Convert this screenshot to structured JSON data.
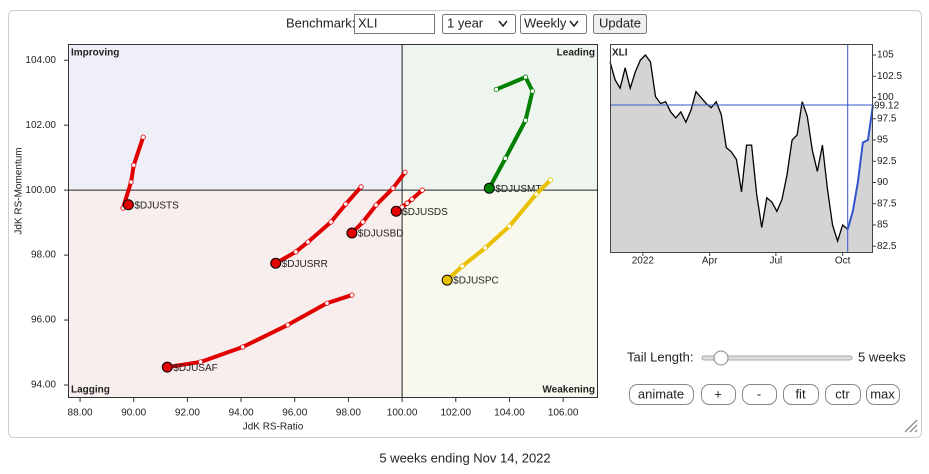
{
  "controls": {
    "benchmark_label": "Benchmark:",
    "benchmark": "XLI",
    "period": "1 year",
    "frequency": "Weekly",
    "update": "Update"
  },
  "chart_data": [
    {
      "type": "scatter",
      "x_label": "JdK RS-Ratio",
      "y_label": "JdK RS-Momentum",
      "xlim": [
        87.55,
        107.3
      ],
      "ylim": [
        93.6,
        104.5
      ],
      "center": [
        100,
        100
      ],
      "xticks": [
        {
          "value": 88,
          "label": "88.00"
        },
        {
          "value": 90,
          "label": "90.00"
        },
        {
          "value": 92,
          "label": "92.00"
        },
        {
          "value": 94,
          "label": "94.00"
        },
        {
          "value": 96,
          "label": "96.00"
        },
        {
          "value": 98,
          "label": "98.00"
        },
        {
          "value": 100,
          "label": "100.00"
        },
        {
          "value": 102,
          "label": "102.00"
        },
        {
          "value": 104,
          "label": "104.00"
        },
        {
          "value": 106,
          "label": "106.00"
        }
      ],
      "yticks": [
        {
          "value": 94,
          "label": "94.00"
        },
        {
          "value": 96,
          "label": "96.00"
        },
        {
          "value": 98,
          "label": "98.00"
        },
        {
          "value": 100,
          "label": "100.00"
        },
        {
          "value": 102,
          "label": "102.00"
        },
        {
          "value": 104,
          "label": "104.00"
        }
      ],
      "quadrants": [
        {
          "label": "Improving",
          "color": "#9a9ae0",
          "fill": "#efeff8"
        },
        {
          "label": "Leading",
          "color": "#6cbf6c",
          "fill": "#eef5ee"
        },
        {
          "label": "Lagging",
          "color": "#f0a0a0",
          "fill": "#f8eeee"
        },
        {
          "label": "Weakening",
          "color": "#e6c040",
          "fill": "#f8f8ee"
        }
      ],
      "series": [
        {
          "name": "$DJUSTS",
          "color": "#e00000",
          "x": [
            90.35,
            90.0,
            89.9,
            89.6,
            89.8
          ],
          "values": [
            101.63,
            100.77,
            100.25,
            99.45,
            99.55
          ]
        },
        {
          "name": "$DJUSRR",
          "color": "#e00000",
          "x": [
            98.47,
            97.9,
            97.35,
            96.49,
            96.04,
            95.29
          ],
          "values": [
            100.1,
            99.57,
            99.02,
            98.4,
            98.1,
            97.75
          ]
        },
        {
          "name": "$DJUSBD",
          "color": "#e00000",
          "x": [
            100.11,
            99.66,
            99.03,
            98.54,
            98.13
          ],
          "values": [
            100.55,
            100.06,
            99.54,
            99.02,
            98.68
          ]
        },
        {
          "name": "$DJUSDS",
          "color": "#e00000",
          "x": [
            100.75,
            100.37,
            100.19,
            100.0,
            99.78
          ],
          "values": [
            100.0,
            99.72,
            99.6,
            99.48,
            99.35
          ]
        },
        {
          "name": "$DJUSMT",
          "color": "#008000",
          "x": [
            103.51,
            104.6,
            104.86,
            104.6,
            103.85,
            103.25
          ],
          "values": [
            103.1,
            103.48,
            103.05,
            102.15,
            100.98,
            100.06
          ]
        },
        {
          "name": "$DJUSPC",
          "color": "#e8c000",
          "x": [
            105.53,
            105.0,
            104.0,
            103.1,
            102.24,
            101.68
          ],
          "values": [
            100.31,
            99.88,
            98.89,
            98.22,
            97.66,
            97.23
          ]
        },
        {
          "name": "$DJUSAF",
          "color": "#e00000",
          "x": [
            98.13,
            97.2,
            95.74,
            94.06,
            92.49,
            91.25
          ],
          "values": [
            96.77,
            96.52,
            95.85,
            95.17,
            94.71,
            94.55
          ]
        }
      ]
    },
    {
      "type": "line",
      "title": "XLI",
      "xlim": [
        0,
        52
      ],
      "ylim": [
        81.7,
        106.3
      ],
      "xticks": [
        {
          "value": 6.5,
          "label": "2022"
        },
        {
          "value": 19.7,
          "label": "Apr"
        },
        {
          "value": 32.8,
          "label": "Jul"
        },
        {
          "value": 46,
          "label": "Oct"
        }
      ],
      "yticks": [
        82.5,
        85,
        87.5,
        90,
        92.5,
        95,
        97.5,
        100,
        102.5,
        105
      ],
      "x": [
        0,
        1,
        2,
        3,
        4,
        5,
        6,
        7,
        8,
        9,
        10,
        11,
        12,
        13,
        14,
        15,
        16,
        17,
        18,
        19,
        20,
        21,
        22,
        23,
        24,
        25,
        26,
        27,
        28,
        29,
        30,
        31,
        32,
        33,
        34,
        35,
        36,
        37,
        38,
        39,
        40,
        41,
        42,
        43,
        44,
        45,
        46,
        47,
        48,
        49,
        50,
        51,
        52
      ],
      "series": [
        {
          "color": "#000000",
          "highlight_color": "#3355cc",
          "fill": "#d4d4d4",
          "values": [
            104.2,
            102.1,
            101.1,
            103.5,
            101.1,
            103.0,
            104.4,
            105.0,
            104.2,
            100.1,
            99.3,
            99.5,
            98.3,
            97.6,
            98.3,
            97.1,
            98.5,
            100.7,
            100.0,
            99.3,
            98.8,
            99.5,
            98.0,
            94.1,
            93.6,
            92.7,
            88.9,
            94.4,
            94.4,
            88.6,
            84.7,
            88.2,
            87.7,
            86.6,
            88.0,
            90.9,
            95.0,
            95.6,
            99.5,
            97.8,
            93.8,
            91.3,
            94.4,
            89.2,
            85.0,
            83.1,
            85.0,
            84.5,
            86.6,
            90.0,
            94.7,
            95.0,
            99.12
          ]
        }
      ]
    }
  ],
  "tail": {
    "label": "Tail Length:",
    "length": {
      "value": 5,
      "label": "5 weeks"
    }
  },
  "buttons": [
    "animate",
    "+",
    "-",
    "fit",
    "ctr",
    "max"
  ],
  "caption": "5 weeks ending Nov 14, 2022"
}
